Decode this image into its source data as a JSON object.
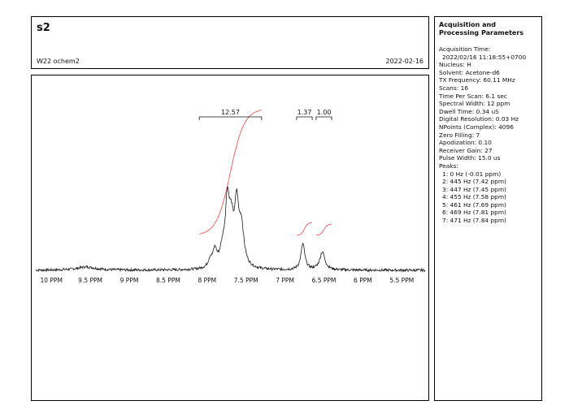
{
  "header": {
    "sample_title": "s2",
    "experiment": "W22 ochem2",
    "date": "2022-02-16"
  },
  "params": {
    "heading": "Acquisition and Processing Parameters",
    "acquisition_time_label": "Acquisition Time:",
    "acquisition_time_value": "2022/02/16 11:18:55+0700",
    "nucleus": "Nucleus: H",
    "solvent": "Solvent: Acetone-d6",
    "tx_frequency": "TX Frequency: 60.11 MHz",
    "scans": "Scans: 16",
    "time_per_scan": "Time Per Scan: 6.1 sec",
    "spectral_width": "Spectral Width: 12 ppm",
    "dwell_time": "Dwell Time: 0.34 uS",
    "digital_resolution": "Digital Resolution: 0.03 Hz",
    "npoints": "NPoints (Complex): 4096",
    "zero_filling": "Zero Filling: 7",
    "apodization": "Apodization: 0.10",
    "receiver_gain": "Receiver Gain: 27",
    "pulse_width": "Pulse Width: 15.0 us",
    "peaks_label": "Peaks:",
    "peaks": [
      "1:  0 Hz (-0.01 ppm)",
      "2:  445 Hz (7.42 ppm)",
      "3:  447 Hz (7.45 ppm)",
      "4:  455 Hz (7.58 ppm)",
      "5:  461 Hz (7.69 ppm)",
      "6:  469 Hz (7.81 ppm)",
      "7:  471 Hz (7.84 ppm)"
    ]
  },
  "chart_data": {
    "type": "line",
    "title": "",
    "xlabel": "",
    "ylabel": "",
    "x_unit": "PPM",
    "x_reversed": true,
    "xlim": [
      10.2,
      5.2
    ],
    "x_ticks": [
      10,
      9.5,
      9,
      8.5,
      8,
      7.5,
      7,
      6.5,
      6,
      5.5
    ],
    "x_tick_labels": [
      "10 PPM",
      "9.5 PPM",
      "9 PPM",
      "8.5 PPM",
      "8 PPM",
      "7.5 PPM",
      "7 PPM",
      "6.5 PPM",
      "6 PPM",
      "5.5 PPM"
    ],
    "ylim": [
      0,
      1
    ],
    "grid": false,
    "colors": {
      "spectrum": "#1a1a1a",
      "integral": "#e85a5a"
    },
    "spectrum_peaks": [
      {
        "ppm": 9.55,
        "height": 0.02,
        "width": 0.15
      },
      {
        "ppm": 7.96,
        "height": 0.05,
        "width": 0.03
      },
      {
        "ppm": 7.9,
        "height": 0.1,
        "width": 0.03
      },
      {
        "ppm": 7.8,
        "height": 0.1,
        "width": 0.04
      },
      {
        "ppm": 7.74,
        "height": 0.35,
        "width": 0.03
      },
      {
        "ppm": 7.69,
        "height": 0.25,
        "width": 0.04
      },
      {
        "ppm": 7.62,
        "height": 0.34,
        "width": 0.03
      },
      {
        "ppm": 7.56,
        "height": 0.24,
        "width": 0.04
      },
      {
        "ppm": 6.77,
        "height": 0.16,
        "width": 0.03
      },
      {
        "ppm": 6.52,
        "height": 0.11,
        "width": 0.04
      }
    ],
    "integrals": [
      {
        "label": "12.57",
        "from_ppm": 8.1,
        "to_ppm": 7.3,
        "rise": 0.78
      },
      {
        "label": "1.37",
        "from_ppm": 6.85,
        "to_ppm": 6.65,
        "rise": 0.08
      },
      {
        "label": "1.00",
        "from_ppm": 6.6,
        "to_ppm": 6.4,
        "rise": 0.07
      }
    ]
  }
}
